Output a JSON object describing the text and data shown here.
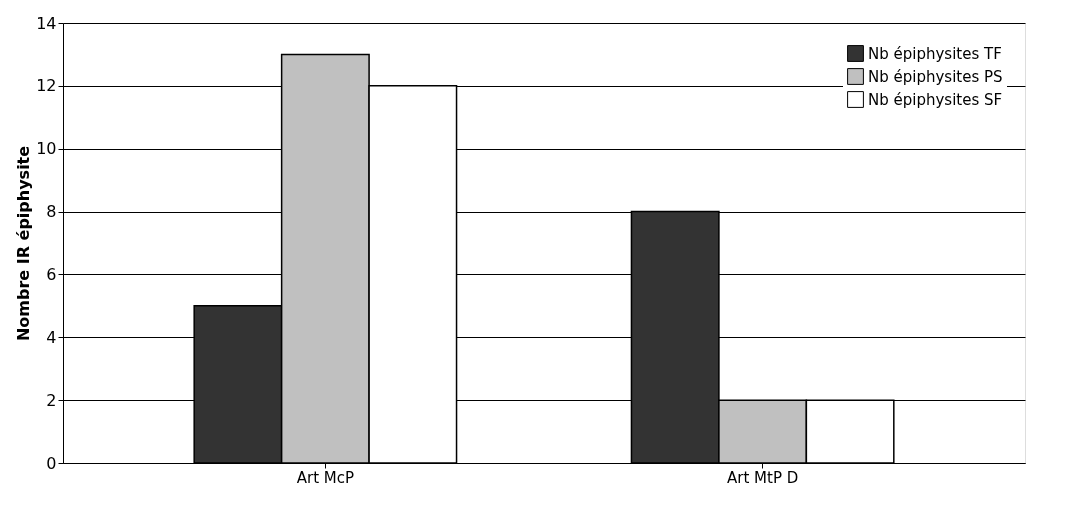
{
  "chart_data": {
    "type": "bar",
    "ylabel": "Nombre IR épiphysite",
    "categories": [
      "Art McP",
      "Art MtP D"
    ],
    "series": [
      {
        "name": "Nb épiphysites TF",
        "color": "#333333",
        "values": [
          5,
          8
        ]
      },
      {
        "name": "Nb épiphysites PS",
        "color": "#c0c0c0",
        "values": [
          13,
          2
        ]
      },
      {
        "name": "Nb épiphysites SF",
        "color": "#ffffff",
        "values": [
          12,
          2
        ]
      }
    ],
    "ylim": [
      0,
      14
    ],
    "yticks": [
      0,
      2,
      4,
      6,
      8,
      10,
      12,
      14
    ],
    "grid": "y",
    "legend": "top right"
  }
}
